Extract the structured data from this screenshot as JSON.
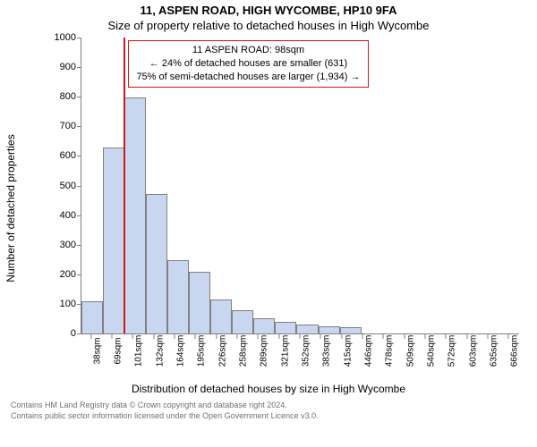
{
  "title_main": "11, ASPEN ROAD, HIGH WYCOMBE, HP10 9FA",
  "title_sub": "Size of property relative to detached houses in High Wycombe",
  "y_label": "Number of detached properties",
  "x_label": "Distribution of detached houses by size in High Wycombe",
  "chart": {
    "type": "histogram",
    "bar_color": "#c9d6ef",
    "bar_border": "#808080",
    "marker_color": "#d01818",
    "annotation_border": "#d01818",
    "background": "#ffffff",
    "ylim": [
      0,
      1000
    ],
    "ytick_step": 100,
    "marker_bin_index": 2,
    "bins": [
      {
        "label": "38sqm",
        "value": 110
      },
      {
        "label": "69sqm",
        "value": 628
      },
      {
        "label": "101sqm",
        "value": 798
      },
      {
        "label": "132sqm",
        "value": 472
      },
      {
        "label": "164sqm",
        "value": 248
      },
      {
        "label": "195sqm",
        "value": 208
      },
      {
        "label": "226sqm",
        "value": 115
      },
      {
        "label": "258sqm",
        "value": 78
      },
      {
        "label": "289sqm",
        "value": 52
      },
      {
        "label": "321sqm",
        "value": 38
      },
      {
        "label": "352sqm",
        "value": 30
      },
      {
        "label": "383sqm",
        "value": 24
      },
      {
        "label": "415sqm",
        "value": 22
      },
      {
        "label": "446sqm",
        "value": 0
      },
      {
        "label": "478sqm",
        "value": 0
      },
      {
        "label": "509sqm",
        "value": 0
      },
      {
        "label": "540sqm",
        "value": 0
      },
      {
        "label": "572sqm",
        "value": 0
      },
      {
        "label": "603sqm",
        "value": 0
      },
      {
        "label": "635sqm",
        "value": 0
      },
      {
        "label": "666sqm",
        "value": 0
      }
    ]
  },
  "annotation": {
    "line1": "11 ASPEN ROAD: 98sqm",
    "line2": "← 24% of detached houses are smaller (631)",
    "line3": "75% of semi-detached houses are larger (1,934) →"
  },
  "footer": {
    "line1": "Contains HM Land Registry data © Crown copyright and database right 2024.",
    "line2": "Contains public sector information licensed under the Open Government Licence v3.0."
  }
}
